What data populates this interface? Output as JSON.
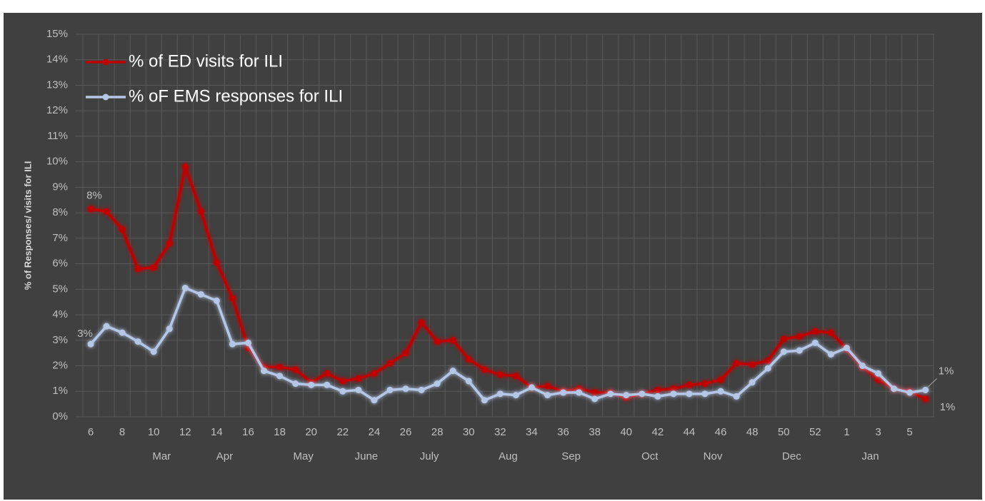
{
  "chart_data": {
    "type": "line",
    "y_label": "% of Responses/ visits for ILI",
    "categories": [
      "6",
      null,
      "8",
      null,
      "10",
      null,
      "12",
      null,
      "14",
      null,
      "16",
      null,
      "18",
      null,
      "20",
      null,
      "22",
      null,
      "24",
      null,
      "26",
      null,
      "28",
      null,
      "30",
      null,
      "32",
      null,
      "34",
      null,
      "36",
      null,
      "38",
      null,
      "40",
      null,
      "42",
      null,
      "44",
      null,
      "46",
      null,
      "48",
      null,
      "50",
      null,
      "52",
      null,
      "1",
      null,
      "3",
      null,
      "5",
      null
    ],
    "x_groups": [
      null,
      null,
      null,
      null,
      null,
      "Mar",
      null,
      null,
      null,
      "Apr",
      null,
      null,
      null,
      null,
      "May",
      null,
      null,
      null,
      "June",
      null,
      null,
      null,
      "July",
      null,
      null,
      null,
      null,
      "Aug",
      null,
      null,
      null,
      "Sep",
      null,
      null,
      null,
      null,
      "Oct",
      null,
      null,
      null,
      "Nov",
      null,
      null,
      null,
      null,
      "Dec",
      null,
      null,
      null,
      null,
      "Jan",
      null,
      null,
      null
    ],
    "series": [
      {
        "name": "% of ED visits for ILI",
        "color": "#c00000",
        "values": [
          8.15,
          8.05,
          7.35,
          5.8,
          5.85,
          6.8,
          9.8,
          8.05,
          6.05,
          4.65,
          2.7,
          1.95,
          1.95,
          1.85,
          1.35,
          1.7,
          1.4,
          1.5,
          1.7,
          2.1,
          2.5,
          3.7,
          2.95,
          3.0,
          2.25,
          1.85,
          1.65,
          1.6,
          1.15,
          1.2,
          1.0,
          1.1,
          0.95,
          0.95,
          0.75,
          0.9,
          1.05,
          1.1,
          1.25,
          1.3,
          1.45,
          2.1,
          2.05,
          2.2,
          3.05,
          3.15,
          3.35,
          3.3,
          2.65,
          1.95,
          1.45,
          1.1,
          1.0,
          0.7
        ],
        "value_labels": [
          "8%",
          null,
          null,
          null,
          null,
          null,
          null,
          null,
          null,
          null,
          null,
          null,
          null,
          null,
          null,
          null,
          null,
          null,
          null,
          null,
          null,
          null,
          null,
          null,
          null,
          null,
          null,
          null,
          null,
          null,
          null,
          null,
          null,
          null,
          null,
          null,
          null,
          null,
          null,
          null,
          null,
          null,
          null,
          null,
          null,
          null,
          null,
          null,
          null,
          null,
          null,
          null,
          null,
          "1%"
        ]
      },
      {
        "name": "% oF EMS responses for ILI",
        "color": "#b4c7e7",
        "values": [
          2.85,
          3.55,
          3.3,
          2.95,
          2.55,
          3.45,
          5.05,
          4.8,
          4.55,
          2.85,
          2.9,
          1.8,
          1.6,
          1.3,
          1.25,
          1.25,
          1.0,
          1.05,
          0.65,
          1.05,
          1.1,
          1.05,
          1.3,
          1.8,
          1.4,
          0.65,
          0.9,
          0.85,
          1.15,
          0.85,
          0.95,
          0.95,
          0.7,
          0.9,
          0.85,
          0.9,
          0.8,
          0.9,
          0.9,
          0.9,
          1.0,
          0.8,
          1.35,
          1.9,
          2.55,
          2.6,
          2.9,
          2.45,
          2.7,
          2.0,
          1.7,
          1.1,
          0.95,
          1.05
        ],
        "value_labels": [
          "3%",
          null,
          null,
          null,
          null,
          null,
          null,
          null,
          null,
          null,
          null,
          null,
          null,
          null,
          null,
          null,
          null,
          null,
          null,
          null,
          null,
          null,
          null,
          null,
          null,
          null,
          null,
          null,
          null,
          null,
          null,
          null,
          null,
          null,
          null,
          null,
          null,
          null,
          null,
          null,
          null,
          null,
          null,
          null,
          null,
          null,
          null,
          null,
          null,
          null,
          null,
          null,
          null,
          "1%"
        ]
      }
    ],
    "ylim": [
      0,
      15
    ],
    "yticks": [
      {
        "value": 0,
        "label": "0%"
      },
      {
        "value": 1,
        "label": "1%"
      },
      {
        "value": 2,
        "label": "2%"
      },
      {
        "value": 3,
        "label": "3%"
      },
      {
        "value": 4,
        "label": "4%"
      },
      {
        "value": 5,
        "label": "5%"
      },
      {
        "value": 6,
        "label": "6%"
      },
      {
        "value": 7,
        "label": "7%"
      },
      {
        "value": 8,
        "label": "8%"
      },
      {
        "value": 9,
        "label": "9%"
      },
      {
        "value": 10,
        "label": "10%"
      },
      {
        "value": 11,
        "label": "11%"
      },
      {
        "value": 12,
        "label": "12%"
      },
      {
        "value": 13,
        "label": "13%"
      },
      {
        "value": 14,
        "label": "14%"
      },
      {
        "value": 15,
        "label": "15%"
      }
    ],
    "grid": true,
    "legend": "upper left"
  }
}
